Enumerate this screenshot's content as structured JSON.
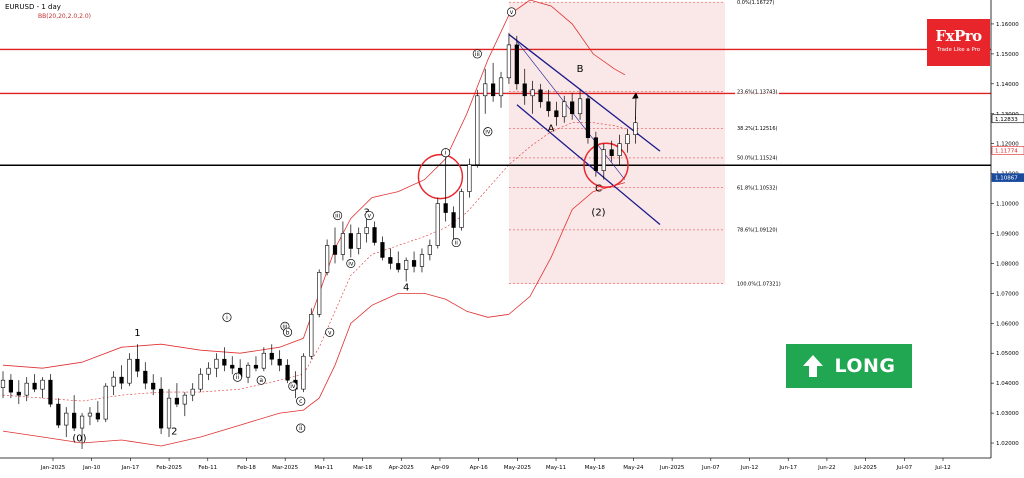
{
  "header": {
    "title": "EURUSD - 1 day",
    "indicator": "BB(20,20,2.0,2.0)"
  },
  "logo": {
    "name": "FxPro",
    "tagline": "Trade Like a Pro"
  },
  "signal": {
    "label": "LONG",
    "color": "#21a652",
    "icon": "up-arrow-icon"
  },
  "colors": {
    "accent": "#e8252a",
    "channel": "#1a1a8c",
    "bollinger": "#e03030",
    "fib_zone": "#f6d4d4",
    "signal": "#21a652"
  },
  "chart_data": {
    "type": "candlestick",
    "symbol": "EURUSD",
    "timeframe": "1 day",
    "ylim": [
      1.015,
      1.168
    ],
    "y_ticks": [
      "1.16000",
      "1.15000",
      "1.14000",
      "1.13000",
      "1.12000",
      "1.11000",
      "1.10000",
      "1.09000",
      "1.08000",
      "1.07000",
      "1.06000",
      "1.05000",
      "1.04000",
      "1.03000",
      "1.02000"
    ],
    "x_ticks": [
      "Jan-2025",
      "Jan-10",
      "Jan-17",
      "Feb-2025",
      "Feb-11",
      "Feb-18",
      "Mar-2025",
      "Mar-11",
      "Mar-18",
      "Apr-2025",
      "Apr-09",
      "Apr-16",
      "May-2025",
      "May-11",
      "May-18",
      "May-24",
      "Jun-2025",
      "Jun-07",
      "Jun-12",
      "Jun-17",
      "Jun-22",
      "Jul-2025",
      "Jul-07",
      "Jul-12"
    ],
    "current_price_labels": [
      "1.12833",
      "1.11774",
      "1.10867"
    ],
    "horizontal_levels": [
      {
        "price": 1.1515,
        "color": "#e02020"
      },
      {
        "price": 1.1368,
        "color": "#e02020"
      },
      {
        "price": 1.1128,
        "color": "#000000"
      }
    ],
    "fibonacci": [
      {
        "label": "0.0%(1.16727)",
        "price": 1.16727
      },
      {
        "label": "23.6%(1.13743)",
        "price": 1.13743
      },
      {
        "label": "38.2%(1.12516)",
        "price": 1.12516
      },
      {
        "label": "50.0%(1.11524)",
        "price": 1.11524
      },
      {
        "label": "61.8%(1.10532)",
        "price": 1.10532
      },
      {
        "label": "78.6%(1.09120)",
        "price": 1.0912
      },
      {
        "label": "100.0%(1.07321)",
        "price": 1.07321
      }
    ],
    "wave_labels": [
      {
        "text": "(0)",
        "date": 29,
        "price": 1.0205
      },
      {
        "text": "1",
        "date": 51,
        "price": 1.0558
      },
      {
        "text": "2",
        "date": 65,
        "price": 1.0228
      },
      {
        "text": "3",
        "date": 138,
        "price": 1.096
      },
      {
        "text": "4",
        "date": 153,
        "price": 1.071
      },
      {
        "text": "5",
        "date": 192,
        "price": 1.17
      },
      {
        "text": "A",
        "date": 208,
        "price": 1.124
      },
      {
        "text": "B",
        "date": 219,
        "price": 1.144
      },
      {
        "text": "C",
        "date": 226,
        "price": 1.104
      },
      {
        "text": "(2)",
        "date": 226,
        "price": 1.096
      }
    ],
    "wave_circles": [
      {
        "text": "i",
        "date": 85,
        "price": 1.062
      },
      {
        "text": "ii",
        "date": 89,
        "price": 1.042
      },
      {
        "text": "iii",
        "date": 107,
        "price": 1.059
      },
      {
        "text": "iv",
        "date": 110,
        "price": 1.039
      },
      {
        "text": "v",
        "date": 124,
        "price": 1.057
      },
      {
        "text": "a",
        "date": 98,
        "price": 1.041
      },
      {
        "text": "b",
        "date": 108,
        "price": 1.057
      },
      {
        "text": "c",
        "date": 113,
        "price": 1.034
      },
      {
        "text": "ii",
        "date": 113,
        "price": 1.025
      },
      {
        "text": "iii",
        "date": 127,
        "price": 1.096
      },
      {
        "text": "iv",
        "date": 132,
        "price": 1.08
      },
      {
        "text": "v",
        "date": 139,
        "price": 1.096
      },
      {
        "text": "i",
        "date": 168,
        "price": 1.117
      },
      {
        "text": "ii",
        "date": 172,
        "price": 1.087
      },
      {
        "text": "iii",
        "date": 180,
        "price": 1.15
      },
      {
        "text": "iv",
        "date": 184,
        "price": 1.124
      },
      {
        "text": "v",
        "date": 193,
        "price": 1.164
      }
    ],
    "series": [
      {
        "date": 0,
        "o": 1.0385,
        "h": 1.044,
        "l": 1.035,
        "c": 1.041
      },
      {
        "date": 3,
        "o": 1.041,
        "h": 1.043,
        "l": 1.035,
        "c": 1.037
      },
      {
        "date": 6,
        "o": 1.037,
        "h": 1.041,
        "l": 1.033,
        "c": 1.036
      },
      {
        "date": 9,
        "o": 1.036,
        "h": 1.042,
        "l": 1.034,
        "c": 1.04
      },
      {
        "date": 12,
        "o": 1.04,
        "h": 1.043,
        "l": 1.037,
        "c": 1.038
      },
      {
        "date": 15,
        "o": 1.038,
        "h": 1.042,
        "l": 1.035,
        "c": 1.041
      },
      {
        "date": 18,
        "o": 1.041,
        "h": 1.043,
        "l": 1.032,
        "c": 1.033
      },
      {
        "date": 21,
        "o": 1.033,
        "h": 1.035,
        "l": 1.025,
        "c": 1.026
      },
      {
        "date": 24,
        "o": 1.026,
        "h": 1.032,
        "l": 1.022,
        "c": 1.03
      },
      {
        "date": 27,
        "o": 1.03,
        "h": 1.036,
        "l": 1.024,
        "c": 1.025
      },
      {
        "date": 30,
        "o": 1.025,
        "h": 1.03,
        "l": 1.018,
        "c": 1.029
      },
      {
        "date": 33,
        "o": 1.029,
        "h": 1.032,
        "l": 1.026,
        "c": 1.03
      },
      {
        "date": 36,
        "o": 1.03,
        "h": 1.034,
        "l": 1.027,
        "c": 1.028
      },
      {
        "date": 39,
        "o": 1.028,
        "h": 1.04,
        "l": 1.027,
        "c": 1.039
      },
      {
        "date": 42,
        "o": 1.039,
        "h": 1.044,
        "l": 1.036,
        "c": 1.042
      },
      {
        "date": 45,
        "o": 1.042,
        "h": 1.046,
        "l": 1.038,
        "c": 1.04
      },
      {
        "date": 48,
        "o": 1.04,
        "h": 1.05,
        "l": 1.039,
        "c": 1.048
      },
      {
        "date": 51,
        "o": 1.048,
        "h": 1.053,
        "l": 1.042,
        "c": 1.044
      },
      {
        "date": 54,
        "o": 1.044,
        "h": 1.047,
        "l": 1.038,
        "c": 1.04
      },
      {
        "date": 57,
        "o": 1.04,
        "h": 1.043,
        "l": 1.036,
        "c": 1.038
      },
      {
        "date": 60,
        "o": 1.038,
        "h": 1.042,
        "l": 1.023,
        "c": 1.025
      },
      {
        "date": 63,
        "o": 1.025,
        "h": 1.038,
        "l": 1.022,
        "c": 1.035
      },
      {
        "date": 66,
        "o": 1.035,
        "h": 1.04,
        "l": 1.032,
        "c": 1.033
      },
      {
        "date": 69,
        "o": 1.033,
        "h": 1.037,
        "l": 1.029,
        "c": 1.036
      },
      {
        "date": 72,
        "o": 1.036,
        "h": 1.04,
        "l": 1.034,
        "c": 1.038
      },
      {
        "date": 75,
        "o": 1.038,
        "h": 1.045,
        "l": 1.037,
        "c": 1.043
      },
      {
        "date": 78,
        "o": 1.043,
        "h": 1.047,
        "l": 1.041,
        "c": 1.045
      },
      {
        "date": 81,
        "o": 1.045,
        "h": 1.05,
        "l": 1.042,
        "c": 1.048
      },
      {
        "date": 84,
        "o": 1.048,
        "h": 1.052,
        "l": 1.044,
        "c": 1.046
      },
      {
        "date": 87,
        "o": 1.046,
        "h": 1.049,
        "l": 1.043,
        "c": 1.045
      },
      {
        "date": 90,
        "o": 1.045,
        "h": 1.048,
        "l": 1.041,
        "c": 1.042
      },
      {
        "date": 93,
        "o": 1.042,
        "h": 1.047,
        "l": 1.04,
        "c": 1.046
      },
      {
        "date": 96,
        "o": 1.046,
        "h": 1.049,
        "l": 1.044,
        "c": 1.045
      },
      {
        "date": 99,
        "o": 1.045,
        "h": 1.052,
        "l": 1.044,
        "c": 1.05
      },
      {
        "date": 102,
        "o": 1.05,
        "h": 1.053,
        "l": 1.046,
        "c": 1.048
      },
      {
        "date": 105,
        "o": 1.048,
        "h": 1.051,
        "l": 1.044,
        "c": 1.046
      },
      {
        "date": 108,
        "o": 1.046,
        "h": 1.048,
        "l": 1.04,
        "c": 1.041
      },
      {
        "date": 111,
        "o": 1.041,
        "h": 1.044,
        "l": 1.035,
        "c": 1.038
      },
      {
        "date": 114,
        "o": 1.038,
        "h": 1.05,
        "l": 1.037,
        "c": 1.049
      },
      {
        "date": 117,
        "o": 1.049,
        "h": 1.065,
        "l": 1.048,
        "c": 1.063
      },
      {
        "date": 120,
        "o": 1.063,
        "h": 1.078,
        "l": 1.062,
        "c": 1.077
      },
      {
        "date": 123,
        "o": 1.077,
        "h": 1.088,
        "l": 1.076,
        "c": 1.086
      },
      {
        "date": 126,
        "o": 1.086,
        "h": 1.092,
        "l": 1.08,
        "c": 1.083
      },
      {
        "date": 129,
        "o": 1.083,
        "h": 1.094,
        "l": 1.081,
        "c": 1.09
      },
      {
        "date": 132,
        "o": 1.09,
        "h": 1.093,
        "l": 1.082,
        "c": 1.085
      },
      {
        "date": 135,
        "o": 1.085,
        "h": 1.092,
        "l": 1.083,
        "c": 1.09
      },
      {
        "date": 138,
        "o": 1.09,
        "h": 1.095,
        "l": 1.087,
        "c": 1.092
      },
      {
        "date": 141,
        "o": 1.092,
        "h": 1.094,
        "l": 1.086,
        "c": 1.087
      },
      {
        "date": 144,
        "o": 1.087,
        "h": 1.089,
        "l": 1.081,
        "c": 1.082
      },
      {
        "date": 147,
        "o": 1.082,
        "h": 1.085,
        "l": 1.078,
        "c": 1.08
      },
      {
        "date": 150,
        "o": 1.08,
        "h": 1.084,
        "l": 1.077,
        "c": 1.078
      },
      {
        "date": 153,
        "o": 1.078,
        "h": 1.082,
        "l": 1.074,
        "c": 1.081
      },
      {
        "date": 156,
        "o": 1.081,
        "h": 1.084,
        "l": 1.077,
        "c": 1.079
      },
      {
        "date": 159,
        "o": 1.079,
        "h": 1.085,
        "l": 1.077,
        "c": 1.083
      },
      {
        "date": 162,
        "o": 1.083,
        "h": 1.088,
        "l": 1.081,
        "c": 1.086
      },
      {
        "date": 165,
        "o": 1.086,
        "h": 1.102,
        "l": 1.085,
        "c": 1.1
      },
      {
        "date": 168,
        "o": 1.1,
        "h": 1.117,
        "l": 1.094,
        "c": 1.097
      },
      {
        "date": 171,
        "o": 1.097,
        "h": 1.099,
        "l": 1.088,
        "c": 1.092
      },
      {
        "date": 174,
        "o": 1.092,
        "h": 1.105,
        "l": 1.091,
        "c": 1.104
      },
      {
        "date": 177,
        "o": 1.104,
        "h": 1.115,
        "l": 1.102,
        "c": 1.113
      },
      {
        "date": 180,
        "o": 1.113,
        "h": 1.138,
        "l": 1.112,
        "c": 1.136
      },
      {
        "date": 183,
        "o": 1.136,
        "h": 1.145,
        "l": 1.13,
        "c": 1.14
      },
      {
        "date": 186,
        "o": 1.14,
        "h": 1.147,
        "l": 1.134,
        "c": 1.136
      },
      {
        "date": 189,
        "o": 1.136,
        "h": 1.144,
        "l": 1.132,
        "c": 1.142
      },
      {
        "date": 192,
        "o": 1.142,
        "h": 1.157,
        "l": 1.14,
        "c": 1.153
      },
      {
        "date": 195,
        "o": 1.153,
        "h": 1.156,
        "l": 1.138,
        "c": 1.14
      },
      {
        "date": 198,
        "o": 1.14,
        "h": 1.145,
        "l": 1.133,
        "c": 1.136
      },
      {
        "date": 201,
        "o": 1.136,
        "h": 1.141,
        "l": 1.13,
        "c": 1.138
      },
      {
        "date": 204,
        "o": 1.138,
        "h": 1.14,
        "l": 1.132,
        "c": 1.134
      },
      {
        "date": 207,
        "o": 1.134,
        "h": 1.138,
        "l": 1.129,
        "c": 1.131
      },
      {
        "date": 210,
        "o": 1.131,
        "h": 1.134,
        "l": 1.126,
        "c": 1.129
      },
      {
        "date": 213,
        "o": 1.129,
        "h": 1.136,
        "l": 1.127,
        "c": 1.134
      },
      {
        "date": 216,
        "o": 1.134,
        "h": 1.137,
        "l": 1.128,
        "c": 1.13
      },
      {
        "date": 219,
        "o": 1.13,
        "h": 1.138,
        "l": 1.128,
        "c": 1.135
      },
      {
        "date": 222,
        "o": 1.135,
        "h": 1.136,
        "l": 1.12,
        "c": 1.122
      },
      {
        "date": 225,
        "o": 1.122,
        "h": 1.124,
        "l": 1.109,
        "c": 1.111
      },
      {
        "date": 228,
        "o": 1.111,
        "h": 1.12,
        "l": 1.108,
        "c": 1.118
      },
      {
        "date": 231,
        "o": 1.118,
        "h": 1.121,
        "l": 1.114,
        "c": 1.116
      },
      {
        "date": 234,
        "o": 1.116,
        "h": 1.123,
        "l": 1.113,
        "c": 1.12
      },
      {
        "date": 237,
        "o": 1.12,
        "h": 1.125,
        "l": 1.117,
        "c": 1.123
      },
      {
        "date": 240,
        "o": 1.123,
        "h": 1.129,
        "l": 1.12,
        "c": 1.127
      }
    ]
  }
}
